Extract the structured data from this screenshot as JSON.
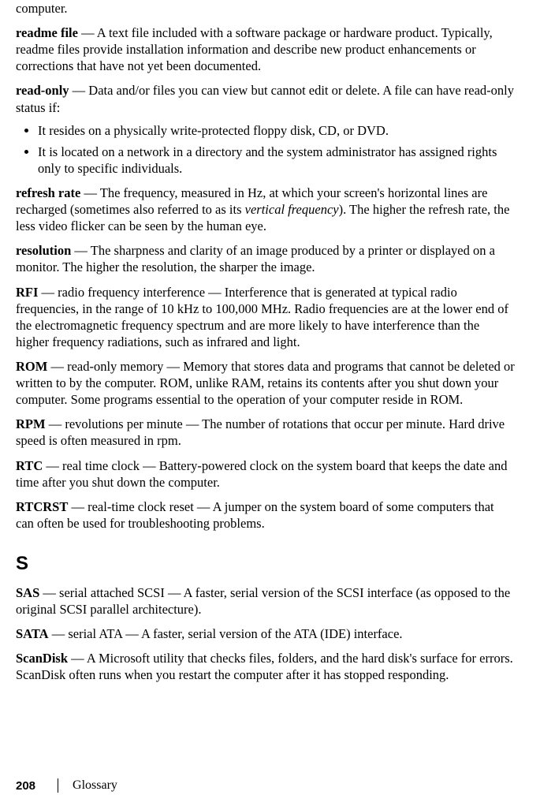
{
  "frag_top": "computer.",
  "entries": [
    {
      "term": "readme file",
      "body": " — A text file included with a software package or hardware product. Typically, readme files provide installation information and describe new product enhancements or corrections that have not yet been documented."
    },
    {
      "term": "read-only",
      "body": " — Data and/or files you can view but cannot edit or delete. A file can have read-only status if:"
    }
  ],
  "bullets": [
    "It resides on a physically write-protected floppy disk, CD, or DVD.",
    "It is located on a network in a directory and the system administrator has assigned rights only to specific individuals."
  ],
  "refresh_rate": {
    "term": "refresh rate",
    "pre": " — The frequency, measured in Hz, at which your screen's horizontal lines are recharged (sometimes also referred to as its ",
    "ital": "vertical frequency",
    "post": "). The higher the refresh rate, the less video flicker can be seen by the human eye."
  },
  "entries2": [
    {
      "term": "resolution",
      "body": " — The sharpness and clarity of an image produced by a printer or displayed on a monitor. The higher the resolution, the sharper the image."
    },
    {
      "term": "RFI",
      "body": " — radio frequency interference — Interference that is generated at typical radio frequencies, in the range of 10 kHz to 100,000 MHz. Radio frequencies are at the lower end of the electromagnetic frequency spectrum and are more likely to have interference than the higher frequency radiations, such as infrared and light."
    },
    {
      "term": "ROM",
      "body": " — read-only memory — Memory that stores data and programs that cannot be deleted or written to by the computer. ROM, unlike RAM, retains its contents after you shut down your computer. Some programs essential to the operation of your computer reside in ROM."
    },
    {
      "term": "RPM",
      "body": " — revolutions per minute — The number of rotations that occur per minute. Hard drive speed is often measured in rpm."
    },
    {
      "term": "RTC",
      "body": " — real time clock — Battery-powered clock on the system board that keeps the date and time after you shut down the computer."
    },
    {
      "term": "RTCRST",
      "body": " — real-time clock reset — A jumper on the system board of some computers that can often be used for troubleshooting problems."
    }
  ],
  "section_s": "S",
  "entries3": [
    {
      "term": "SAS",
      "body": " — serial attached SCSI — A faster, serial version of the SCSI interface (as opposed to the original SCSI parallel architecture)."
    },
    {
      "term": "SATA",
      "body": " — serial ATA — A faster, serial version of the ATA (IDE) interface."
    },
    {
      "term": "ScanDisk",
      "body": " — A Microsoft utility that checks files, folders, and the hard disk's surface for errors. ScanDisk often runs when you restart the computer after it has stopped responding."
    }
  ],
  "footer": {
    "page": "208",
    "label": "Glossary"
  }
}
